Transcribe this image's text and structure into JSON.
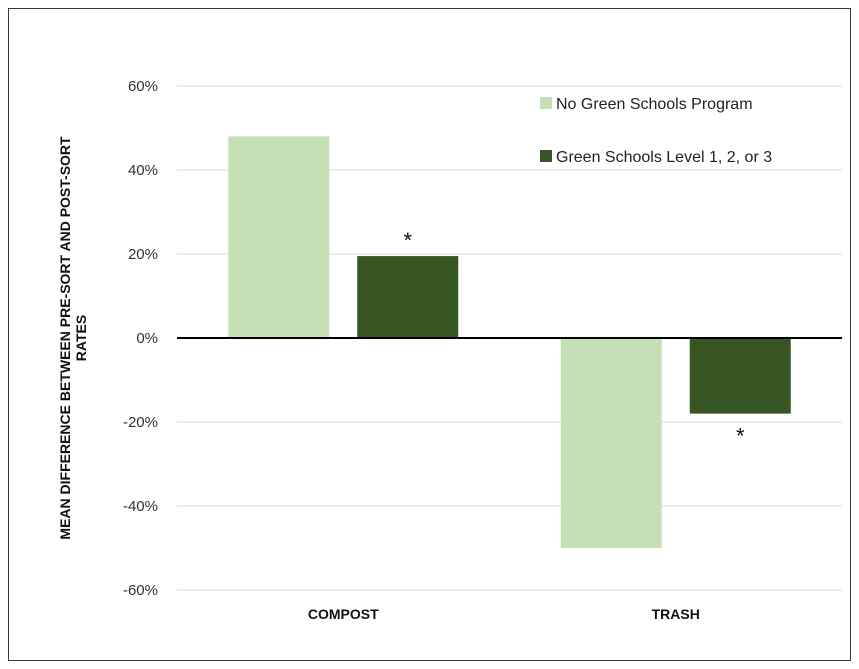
{
  "chart_data": {
    "type": "bar",
    "title": "",
    "ylabel_lines": [
      "MEAN DIFFERENCE BETWEEN PRE-SORT AND POST-SORT",
      "RATES"
    ],
    "xlabel": "",
    "categories": [
      "COMPOST",
      "TRASH"
    ],
    "series": [
      {
        "name": "No Green Schools Program",
        "values": [
          48,
          -50
        ],
        "color": "#c5e0b4"
      },
      {
        "name": "Green Schools Level 1, 2, or 3",
        "values": [
          19.5,
          -18
        ],
        "color": "#375623"
      }
    ],
    "ylim": [
      -60,
      60
    ],
    "yticks": [
      60,
      40,
      20,
      0,
      -20,
      -40,
      -60
    ],
    "ytick_labels": [
      "60%",
      "40%",
      "20%",
      "0%",
      "-20%",
      "-40%",
      "-60%"
    ],
    "grid": true,
    "legend_position": "top-right",
    "annotations": [
      {
        "category": "COMPOST",
        "series": 1,
        "text": "*"
      },
      {
        "category": "TRASH",
        "series": 1,
        "text": "*"
      }
    ]
  }
}
